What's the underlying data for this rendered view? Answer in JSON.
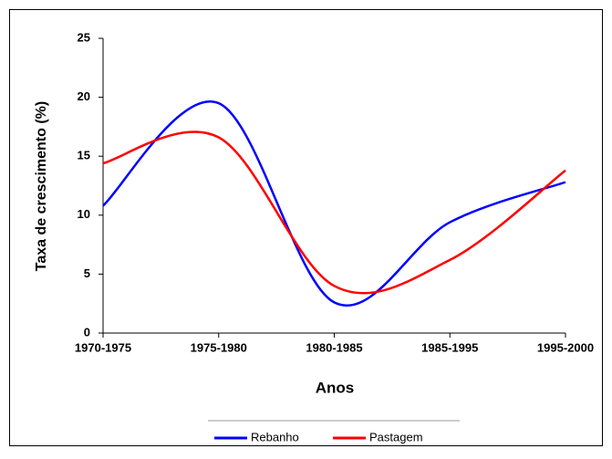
{
  "chart_data": {
    "type": "line",
    "x_label": "Anos",
    "y_label": "Taxa de crescimento (%)",
    "categories": [
      "1970-1975",
      "1975-1980",
      "1980-1985",
      "1985-1995",
      "1995-2000"
    ],
    "series": [
      {
        "name": "Rebanho",
        "color": "#0000ff",
        "values": [
          10.8,
          19.5,
          2.6,
          9.4,
          12.8
        ]
      },
      {
        "name": "Pastagem",
        "color": "#ff0000",
        "values": [
          14.4,
          16.6,
          4.0,
          6.2,
          13.8
        ]
      }
    ],
    "ylim": [
      0,
      25
    ],
    "yticks": [
      0,
      5,
      10,
      15,
      20,
      25
    ],
    "smooth": true,
    "legend": "bottom"
  }
}
